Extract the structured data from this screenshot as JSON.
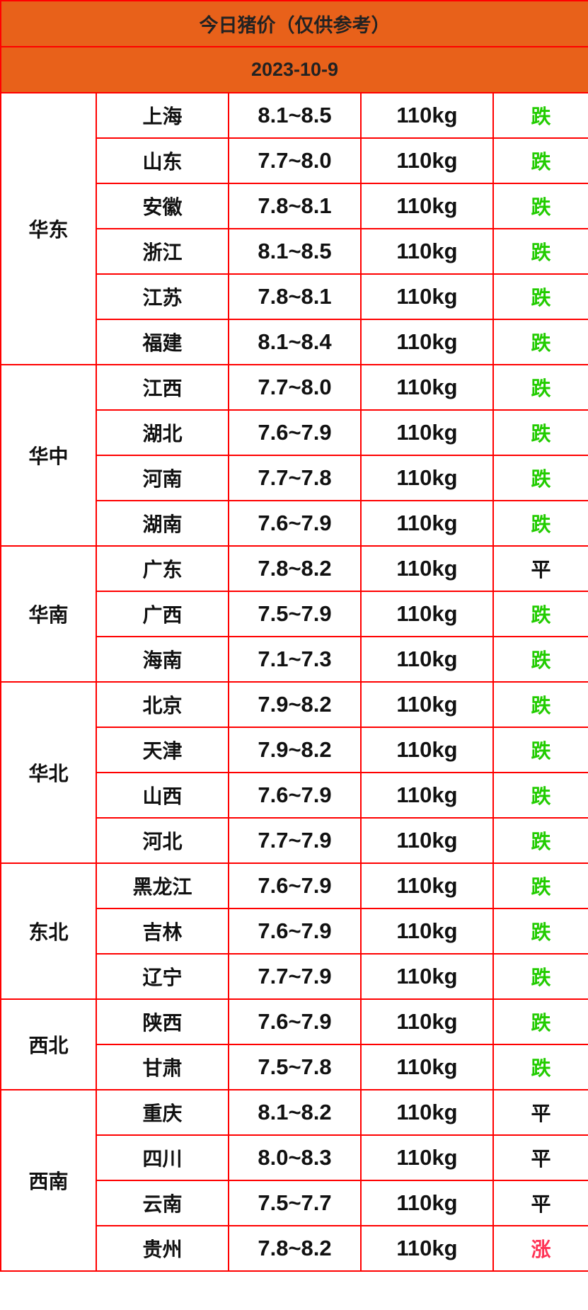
{
  "title": "今日猪价（仅供参考）",
  "date": "2023-10-9",
  "colors": {
    "header_bg": "#e8611a",
    "border": "#ff0000",
    "down": "#22cc00",
    "flat": "#111111",
    "up": "#ff3355"
  },
  "regions": [
    {
      "name": "华东",
      "rows": [
        {
          "province": "上海",
          "price": "8.1~8.5",
          "weight": "110kg",
          "trend": "跌",
          "trend_type": "down"
        },
        {
          "province": "山东",
          "price": "7.7~8.0",
          "weight": "110kg",
          "trend": "跌",
          "trend_type": "down"
        },
        {
          "province": "安徽",
          "price": "7.8~8.1",
          "weight": "110kg",
          "trend": "跌",
          "trend_type": "down"
        },
        {
          "province": "浙江",
          "price": "8.1~8.5",
          "weight": "110kg",
          "trend": "跌",
          "trend_type": "down"
        },
        {
          "province": "江苏",
          "price": "7.8~8.1",
          "weight": "110kg",
          "trend": "跌",
          "trend_type": "down"
        },
        {
          "province": "福建",
          "price": "8.1~8.4",
          "weight": "110kg",
          "trend": "跌",
          "trend_type": "down"
        }
      ]
    },
    {
      "name": "华中",
      "rows": [
        {
          "province": "江西",
          "price": "7.7~8.0",
          "weight": "110kg",
          "trend": "跌",
          "trend_type": "down"
        },
        {
          "province": "湖北",
          "price": "7.6~7.9",
          "weight": "110kg",
          "trend": "跌",
          "trend_type": "down"
        },
        {
          "province": "河南",
          "price": "7.7~7.8",
          "weight": "110kg",
          "trend": "跌",
          "trend_type": "down"
        },
        {
          "province": "湖南",
          "price": "7.6~7.9",
          "weight": "110kg",
          "trend": "跌",
          "trend_type": "down"
        }
      ]
    },
    {
      "name": "华南",
      "rows": [
        {
          "province": "广东",
          "price": "7.8~8.2",
          "weight": "110kg",
          "trend": "平",
          "trend_type": "flat"
        },
        {
          "province": "广西",
          "price": "7.5~7.9",
          "weight": "110kg",
          "trend": "跌",
          "trend_type": "down"
        },
        {
          "province": "海南",
          "price": "7.1~7.3",
          "weight": "110kg",
          "trend": "跌",
          "trend_type": "down"
        }
      ]
    },
    {
      "name": "华北",
      "rows": [
        {
          "province": "北京",
          "price": "7.9~8.2",
          "weight": "110kg",
          "trend": "跌",
          "trend_type": "down"
        },
        {
          "province": "天津",
          "price": "7.9~8.2",
          "weight": "110kg",
          "trend": "跌",
          "trend_type": "down"
        },
        {
          "province": "山西",
          "price": "7.6~7.9",
          "weight": "110kg",
          "trend": "跌",
          "trend_type": "down"
        },
        {
          "province": "河北",
          "price": "7.7~7.9",
          "weight": "110kg",
          "trend": "跌",
          "trend_type": "down"
        }
      ]
    },
    {
      "name": "东北",
      "rows": [
        {
          "province": "黑龙江",
          "price": "7.6~7.9",
          "weight": "110kg",
          "trend": "跌",
          "trend_type": "down"
        },
        {
          "province": "吉林",
          "price": "7.6~7.9",
          "weight": "110kg",
          "trend": "跌",
          "trend_type": "down"
        },
        {
          "province": "辽宁",
          "price": "7.7~7.9",
          "weight": "110kg",
          "trend": "跌",
          "trend_type": "down"
        }
      ]
    },
    {
      "name": "西北",
      "rows": [
        {
          "province": "陕西",
          "price": "7.6~7.9",
          "weight": "110kg",
          "trend": "跌",
          "trend_type": "down"
        },
        {
          "province": "甘肃",
          "price": "7.5~7.8",
          "weight": "110kg",
          "trend": "跌",
          "trend_type": "down"
        }
      ]
    },
    {
      "name": "西南",
      "rows": [
        {
          "province": "重庆",
          "price": "8.1~8.2",
          "weight": "110kg",
          "trend": "平",
          "trend_type": "flat"
        },
        {
          "province": "四川",
          "price": "8.0~8.3",
          "weight": "110kg",
          "trend": "平",
          "trend_type": "flat"
        },
        {
          "province": "云南",
          "price": "7.5~7.7",
          "weight": "110kg",
          "trend": "平",
          "trend_type": "flat"
        },
        {
          "province": "贵州",
          "price": "7.8~8.2",
          "weight": "110kg",
          "trend": "涨",
          "trend_type": "up"
        }
      ]
    }
  ]
}
